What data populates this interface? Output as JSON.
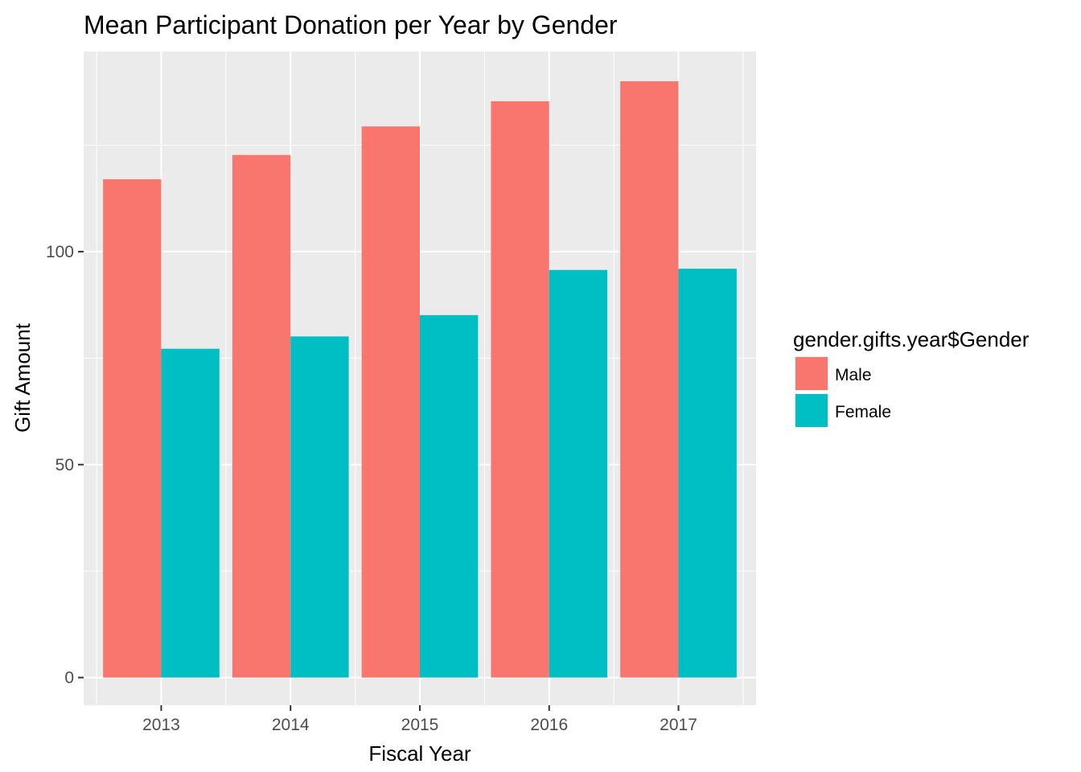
{
  "chart_data": {
    "type": "bar",
    "title": "Mean Participant Donation per Year by Gender",
    "xlabel": "Fiscal Year",
    "ylabel": "Gift Amount",
    "categories": [
      "2013",
      "2014",
      "2015",
      "2016",
      "2017"
    ],
    "series": [
      {
        "name": "Male",
        "color": "#F8766D",
        "values": [
          117,
          122.7,
          129.4,
          135.3,
          140
        ]
      },
      {
        "name": "Female",
        "color": "#00BFC4",
        "values": [
          77.2,
          80.1,
          85.1,
          95.7,
          96
        ]
      }
    ],
    "ylim": [
      -6.5,
      147
    ],
    "yticks": [
      0,
      50,
      100
    ],
    "grid": true,
    "legend": {
      "title": "gender.gifts.year$Gender",
      "position": "right"
    },
    "panel_background": "#EBEBEB",
    "grid_color": "#FFFFFF"
  }
}
